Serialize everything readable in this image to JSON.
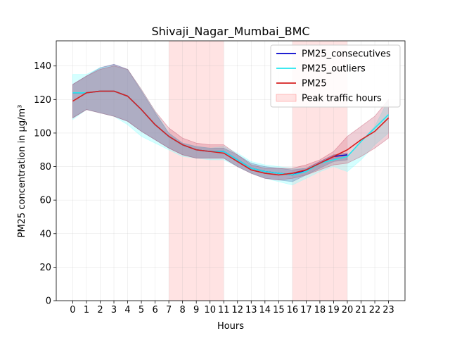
{
  "chart_data": {
    "type": "line",
    "title": "Shivaji_Nagar_Mumbai_BMC",
    "xlabel": "Hours",
    "ylabel": "PM25 concentration in µg/m³",
    "x": [
      0,
      1,
      2,
      3,
      4,
      5,
      6,
      7,
      8,
      9,
      10,
      11,
      12,
      13,
      14,
      15,
      16,
      17,
      18,
      19,
      20,
      21,
      22,
      23
    ],
    "xlim": [
      -1.2,
      24.2
    ],
    "ylim": [
      0,
      155
    ],
    "yticks": [
      0,
      20,
      40,
      60,
      80,
      100,
      120,
      140
    ],
    "grid": true,
    "legend_position": "upper-right",
    "shaded_regions": [
      {
        "name": "Peak traffic hours",
        "x0": 7,
        "x1": 11,
        "color": "#ffcccc"
      },
      {
        "name": "Peak traffic hours",
        "x0": 16,
        "x1": 20,
        "color": "#ffcccc"
      }
    ],
    "series": [
      {
        "name": "PM25_consecutives",
        "color": "#0000cc",
        "values": [
          124,
          124,
          125,
          125,
          122,
          114,
          105,
          98,
          93,
          90,
          89,
          89,
          84,
          79,
          77,
          76,
          75,
          78,
          82,
          86,
          87,
          null,
          null,
          null
        ],
        "band_low": [
          109,
          114,
          112,
          110,
          107,
          101,
          96,
          91,
          87,
          85,
          85,
          85,
          80,
          76,
          73,
          72,
          71,
          75,
          79,
          83,
          84,
          null,
          null,
          null
        ],
        "band_high": [
          129,
          134,
          139,
          141,
          138,
          125,
          112,
          100,
          94,
          92,
          91,
          91,
          87,
          82,
          80,
          79,
          78,
          79,
          83,
          87,
          88,
          null,
          null,
          null
        ],
        "band_color": "#3b3b8c"
      },
      {
        "name": "PM25_outliers",
        "color": "#22e6ee",
        "values": [
          124,
          124,
          125,
          125,
          122,
          114,
          105,
          98,
          93,
          90,
          89,
          89,
          84,
          79,
          77,
          76,
          75,
          77,
          82,
          84,
          86,
          95,
          103,
          111
        ],
        "band_low": [
          108,
          114,
          112,
          110,
          105,
          98,
          94,
          90,
          86,
          85,
          84,
          84,
          80,
          76,
          73,
          71,
          69,
          73,
          77,
          80,
          77,
          84,
          93,
          100
        ],
        "band_high": [
          135,
          135,
          139,
          140,
          138,
          126,
          113,
          100,
          94,
          92,
          91,
          92,
          88,
          83,
          81,
          80,
          79,
          79,
          82,
          84,
          86,
          95,
          104,
          120
        ],
        "band_color": "#88ffff"
      },
      {
        "name": "PM25",
        "color": "#d62020",
        "values": [
          119,
          124,
          125,
          125,
          122,
          114,
          105,
          98,
          93,
          90,
          89,
          88,
          83,
          78,
          76,
          75,
          76,
          78,
          82,
          86,
          90,
          96,
          101,
          109
        ],
        "band_low": [
          109,
          114,
          112,
          110,
          107,
          101,
          96,
          91,
          87,
          85,
          85,
          85,
          80,
          76,
          73,
          72,
          73,
          75,
          78,
          81,
          82,
          86,
          91,
          97
        ],
        "band_high": [
          129,
          134,
          138,
          140,
          138,
          126,
          113,
          103,
          97,
          94,
          93,
          93,
          87,
          81,
          79,
          79,
          79,
          81,
          84,
          89,
          98,
          104,
          110,
          120
        ],
        "band_color": "#c04060"
      }
    ],
    "legend": [
      "PM25_consecutives",
      "PM25_outliers",
      "PM25",
      "Peak traffic hours"
    ]
  }
}
